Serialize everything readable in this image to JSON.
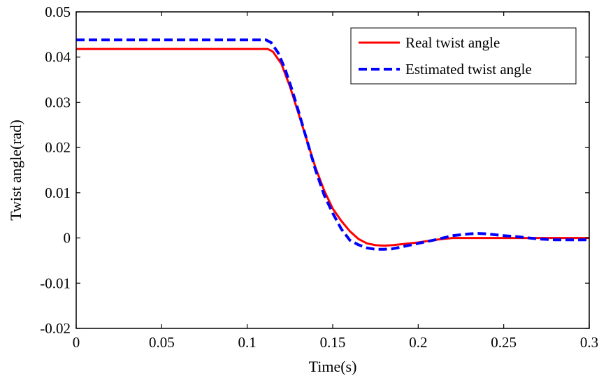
{
  "chart_data": {
    "type": "line",
    "title": "",
    "xlabel": "Time(s)",
    "ylabel": "Twist angle(rad)",
    "xlim": [
      0,
      0.3
    ],
    "ylim": [
      -0.02,
      0.05
    ],
    "xticks": [
      0,
      0.05,
      0.1,
      0.15,
      0.2,
      0.25,
      0.3
    ],
    "xtick_labels": [
      "0",
      "0.05",
      "0.1",
      "0.15",
      "0.2",
      "0.25",
      "0.3"
    ],
    "yticks": [
      -0.02,
      -0.01,
      0,
      0.01,
      0.02,
      0.03,
      0.04,
      0.05
    ],
    "ytick_labels": [
      "-0.02",
      "-0.01",
      "0",
      "0.01",
      "0.02",
      "0.03",
      "0.04",
      "0.05"
    ],
    "grid": false,
    "legend_position": "top-right",
    "series": [
      {
        "name": "Real twist angle",
        "color": "#ff0000",
        "line_style": "solid",
        "x": [
          0,
          0.05,
          0.1,
          0.112,
          0.115,
          0.12,
          0.125,
          0.13,
          0.135,
          0.14,
          0.145,
          0.15,
          0.155,
          0.16,
          0.165,
          0.17,
          0.175,
          0.18,
          0.185,
          0.19,
          0.2,
          0.21,
          0.22,
          0.25,
          0.3
        ],
        "y": [
          0.0418,
          0.0418,
          0.0418,
          0.0418,
          0.0412,
          0.0385,
          0.0335,
          0.0275,
          0.0215,
          0.0155,
          0.0105,
          0.0065,
          0.0038,
          0.0015,
          -0.0002,
          -0.0012,
          -0.0016,
          -0.0017,
          -0.0016,
          -0.0014,
          -0.001,
          -0.0004,
          0,
          0,
          0
        ]
      },
      {
        "name": "Estimated twist angle",
        "color": "#0000ff",
        "line_style": "dashed",
        "x": [
          0,
          0.05,
          0.1,
          0.111,
          0.114,
          0.118,
          0.122,
          0.126,
          0.13,
          0.135,
          0.14,
          0.145,
          0.15,
          0.155,
          0.16,
          0.165,
          0.17,
          0.175,
          0.18,
          0.185,
          0.19,
          0.2,
          0.21,
          0.22,
          0.23,
          0.235,
          0.24,
          0.25,
          0.26,
          0.27,
          0.28,
          0.3
        ],
        "y": [
          0.0438,
          0.0438,
          0.0438,
          0.0438,
          0.0432,
          0.041,
          0.0375,
          0.033,
          0.028,
          0.0215,
          0.015,
          0.0095,
          0.0055,
          0.002,
          -0.0005,
          -0.0015,
          -0.0022,
          -0.0025,
          -0.0025,
          -0.0024,
          -0.002,
          -0.0012,
          -0.0004,
          0.0005,
          0.0009,
          0.001,
          0.0009,
          0.0005,
          0.0002,
          -0.0002,
          -0.0004,
          -0.0004
        ]
      }
    ]
  },
  "colors": {
    "background": "#ffffff",
    "axes": "#000000",
    "real": "#ff0000",
    "estimated": "#0000ff"
  }
}
